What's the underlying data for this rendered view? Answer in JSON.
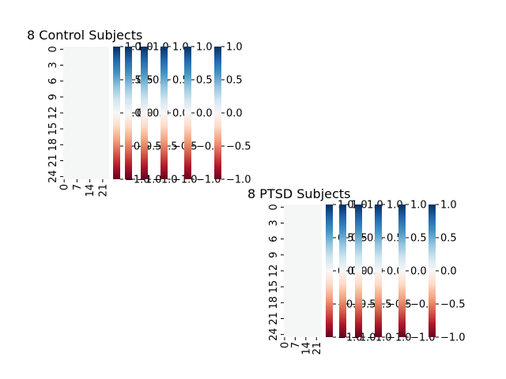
{
  "chart_data": [
    {
      "type": "heatmap",
      "title": "8 Control Subjects",
      "rows": 25,
      "cols": 25,
      "cell_value": 0.0,
      "cell_color": "#f5f7f6",
      "y_ticks": [
        "0",
        "3",
        "6",
        "9",
        "12",
        "15",
        "18",
        "21",
        "24"
      ],
      "x_ticks": [
        "0",
        "7",
        "14",
        "21"
      ],
      "colorbar": {
        "cmap": "RdBu",
        "vmin": -1.0,
        "vmax": 1.0,
        "count": 6,
        "ticks": [
          "-1.0",
          "-0.5",
          "0.0",
          "0.5",
          "1.0"
        ]
      }
    },
    {
      "type": "heatmap",
      "title": "8 PTSD Subjects",
      "rows": 25,
      "cols": 25,
      "cell_value": 0.0,
      "cell_color": "#f5f7f6",
      "y_ticks": [
        "0",
        "3",
        "6",
        "9",
        "12",
        "15",
        "18",
        "21",
        "24"
      ],
      "x_ticks": [
        "0",
        "7",
        "14",
        "21"
      ],
      "colorbar": {
        "cmap": "RdBu",
        "vmin": -1.0,
        "vmax": 1.0,
        "count": 6,
        "ticks": [
          "-1.0",
          "-0.5",
          "0.0",
          "0.5",
          "1.0"
        ]
      }
    }
  ]
}
